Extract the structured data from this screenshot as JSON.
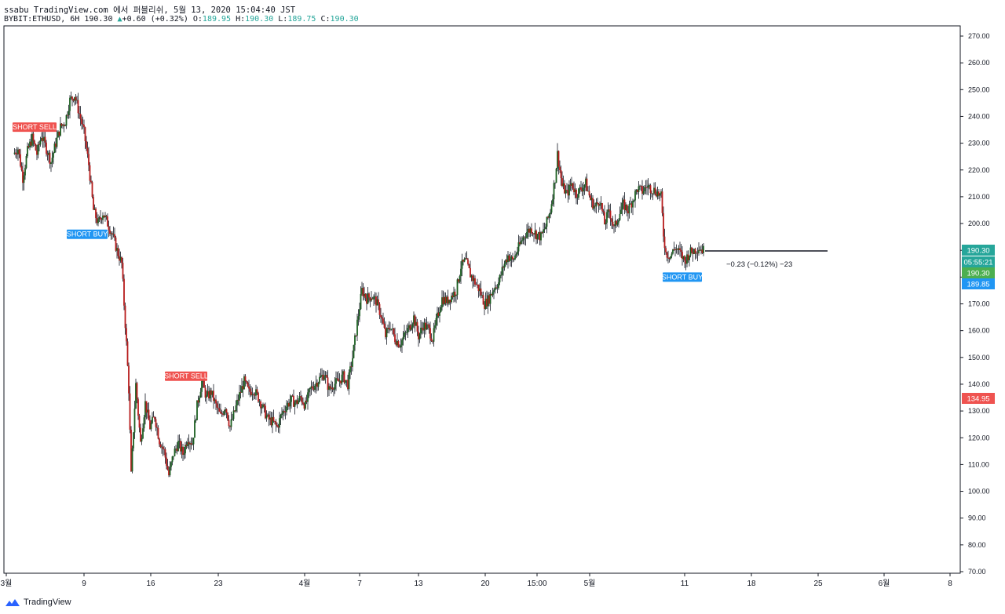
{
  "header": {
    "publish_line": "ssabu TradingView.com 에서 퍼블리쉬, 5월 13, 2020 15:04:40 JST",
    "symbol_line": "BYBIT:ETHUSD, 6H 190.30",
    "change": "+0.60 (+0.32%)",
    "o_label": "O:",
    "o_value": "189.95",
    "h_label": "H:",
    "h_value": "190.30",
    "l_label": "L:",
    "l_value": "189.75",
    "c_label": "C:",
    "c_value": "190.30"
  },
  "footer": {
    "brand": "TradingView"
  },
  "colors": {
    "up": "#26a69a",
    "down": "#ef5350",
    "candle_up_body": "#1b5e20",
    "candle_down_body": "#b71c1c",
    "wick": "#131722",
    "sell": "#ef5350",
    "buy": "#2196f3"
  },
  "chart_data": {
    "type": "candlestick",
    "symbol": "BYBIT:ETHUSD",
    "interval": "6H",
    "y_axis": {
      "min": 70,
      "max": 270,
      "ticks": [
        270.0,
        260.0,
        250.0,
        240.0,
        230.0,
        220.0,
        210.0,
        200.0,
        190.0,
        180.0,
        170.0,
        160.0,
        150.0,
        140.0,
        130.0,
        120.0,
        110.0,
        100.0,
        90.0,
        80.0,
        70.0
      ]
    },
    "x_axis": {
      "labels": [
        "3월",
        "9",
        "16",
        "23",
        "4월",
        "7",
        "13",
        "20",
        "15:00",
        "5월",
        "11",
        "18",
        "25",
        "6월",
        "8"
      ]
    },
    "price_path": [
      [
        3,
        226
      ],
      [
        5,
        228
      ],
      [
        7,
        217
      ],
      [
        9,
        227
      ],
      [
        11,
        232
      ],
      [
        13,
        226
      ],
      [
        15,
        233
      ],
      [
        17,
        228
      ],
      [
        19,
        223
      ],
      [
        21,
        230
      ],
      [
        23,
        236
      ],
      [
        25,
        238
      ],
      [
        27,
        246
      ],
      [
        29,
        248
      ],
      [
        31,
        241
      ],
      [
        33,
        234
      ],
      [
        35,
        222
      ],
      [
        37,
        205
      ],
      [
        39,
        200
      ],
      [
        41,
        204
      ],
      [
        43,
        200
      ],
      [
        45,
        196
      ],
      [
        47,
        190
      ],
      [
        49,
        185
      ],
      [
        50,
        170
      ],
      [
        51,
        155
      ],
      [
        52,
        138
      ],
      [
        53,
        106
      ],
      [
        55,
        140
      ],
      [
        57,
        118
      ],
      [
        59,
        133
      ],
      [
        61,
        124
      ],
      [
        63,
        128
      ],
      [
        65,
        119
      ],
      [
        67,
        115
      ],
      [
        69,
        106
      ],
      [
        71,
        114
      ],
      [
        73,
        118
      ],
      [
        75,
        114
      ],
      [
        77,
        120
      ],
      [
        79,
        118
      ],
      [
        81,
        132
      ],
      [
        83,
        141
      ],
      [
        85,
        135
      ],
      [
        87,
        137
      ],
      [
        89,
        132
      ],
      [
        91,
        128
      ],
      [
        93,
        132
      ],
      [
        95,
        124
      ],
      [
        97,
        130
      ],
      [
        99,
        136
      ],
      [
        101,
        141
      ],
      [
        103,
        137
      ],
      [
        105,
        138
      ],
      [
        107,
        135
      ],
      [
        109,
        131
      ],
      [
        111,
        127
      ],
      [
        113,
        126
      ],
      [
        115,
        124
      ],
      [
        117,
        129
      ],
      [
        119,
        132
      ],
      [
        121,
        134
      ],
      [
        123,
        133
      ],
      [
        125,
        135
      ],
      [
        127,
        132
      ],
      [
        129,
        138
      ],
      [
        131,
        140
      ],
      [
        133,
        142
      ],
      [
        135,
        144
      ],
      [
        137,
        138
      ],
      [
        139,
        140
      ],
      [
        141,
        141
      ],
      [
        143,
        143
      ],
      [
        145,
        140
      ],
      [
        147,
        150
      ],
      [
        149,
        163
      ],
      [
        151,
        175
      ],
      [
        153,
        172
      ],
      [
        155,
        173
      ],
      [
        157,
        171
      ],
      [
        159,
        166
      ],
      [
        161,
        158
      ],
      [
        163,
        162
      ],
      [
        165,
        157
      ],
      [
        167,
        155
      ],
      [
        169,
        158
      ],
      [
        171,
        161
      ],
      [
        173,
        165
      ],
      [
        175,
        158
      ],
      [
        177,
        162
      ],
      [
        179,
        161
      ],
      [
        181,
        157
      ],
      [
        183,
        165
      ],
      [
        185,
        172
      ],
      [
        187,
        171
      ],
      [
        189,
        173
      ],
      [
        191,
        175
      ],
      [
        193,
        184
      ],
      [
        195,
        186
      ],
      [
        197,
        181
      ],
      [
        199,
        178
      ],
      [
        201,
        175
      ],
      [
        203,
        170
      ],
      [
        205,
        172
      ],
      [
        207,
        176
      ],
      [
        209,
        178
      ],
      [
        211,
        184
      ],
      [
        213,
        188
      ],
      [
        215,
        186
      ],
      [
        217,
        190
      ],
      [
        219,
        194
      ],
      [
        221,
        197
      ],
      [
        223,
        198
      ],
      [
        225,
        196
      ],
      [
        227,
        195
      ],
      [
        229,
        199
      ],
      [
        231,
        205
      ],
      [
        233,
        217
      ],
      [
        234,
        226
      ],
      [
        236,
        214
      ],
      [
        238,
        211
      ],
      [
        240,
        215
      ],
      [
        242,
        211
      ],
      [
        244,
        213
      ],
      [
        246,
        215
      ],
      [
        248,
        209
      ],
      [
        250,
        206
      ],
      [
        252,
        209
      ],
      [
        254,
        200
      ],
      [
        256,
        205
      ],
      [
        258,
        198
      ],
      [
        260,
        203
      ],
      [
        262,
        207
      ],
      [
        264,
        205
      ],
      [
        266,
        209
      ],
      [
        268,
        213
      ],
      [
        270,
        212
      ],
      [
        272,
        214
      ],
      [
        274,
        213
      ],
      [
        276,
        212
      ],
      [
        278,
        210
      ],
      [
        279,
        196
      ],
      [
        280,
        189
      ],
      [
        282,
        188
      ],
      [
        284,
        191
      ],
      [
        286,
        189
      ],
      [
        288,
        186
      ],
      [
        290,
        189
      ],
      [
        292,
        190
      ],
      [
        294,
        191
      ],
      [
        296,
        190
      ]
    ],
    "last_price_tag": "190.30",
    "countdown_tag": "05:55:21",
    "close_tag": "190.30",
    "low_tag": "189.85",
    "level_tag": "134.95",
    "measure_text": "−0.23 (−0.12%) −23",
    "signals": [
      {
        "label": "SHORT SELL",
        "type": "sell",
        "price": 236
      },
      {
        "label": "SHORT BUY",
        "type": "buy",
        "price": 196
      },
      {
        "label": "SHORT SELL",
        "type": "sell",
        "price": 143
      },
      {
        "label": "SHORT BUY",
        "type": "buy",
        "price": 180
      }
    ]
  }
}
